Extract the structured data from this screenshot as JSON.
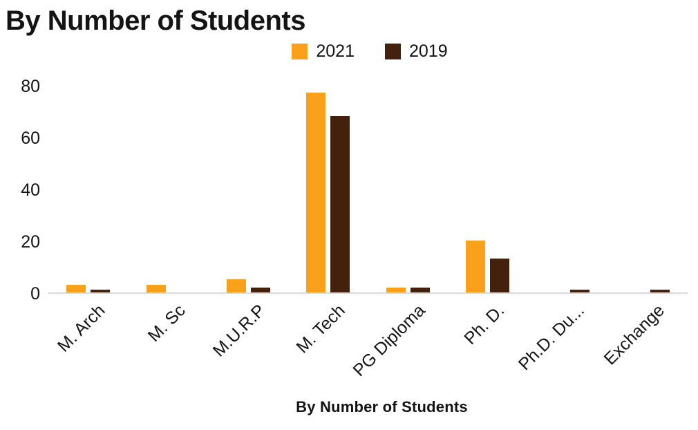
{
  "title": "By Number of Students",
  "legend": {
    "items": [
      {
        "label": "2021",
        "color": "#F9A11B"
      },
      {
        "label": "2019",
        "color": "#44210D"
      }
    ]
  },
  "chart_data": {
    "type": "bar",
    "title": "By Number of Students",
    "categories": [
      "M. Arch",
      "M. Sc",
      "M.U.R.P",
      "M. Tech",
      "PG Diploma",
      "Ph. D.",
      "Ph.D. Du...",
      "Exchange"
    ],
    "series": [
      {
        "name": "2021",
        "color": "#F9A11B",
        "values": [
          3,
          3,
          5,
          77,
          2,
          20,
          0,
          0
        ]
      },
      {
        "name": "2019",
        "color": "#44210D",
        "values": [
          1,
          0,
          2,
          68,
          2,
          13,
          1,
          1
        ]
      }
    ],
    "xlabel": "By Number of Students",
    "ylabel": "",
    "ylim": [
      0,
      80
    ],
    "yticks": [
      0,
      20,
      40,
      60,
      80
    ],
    "grid": false,
    "legend_position": "top"
  }
}
